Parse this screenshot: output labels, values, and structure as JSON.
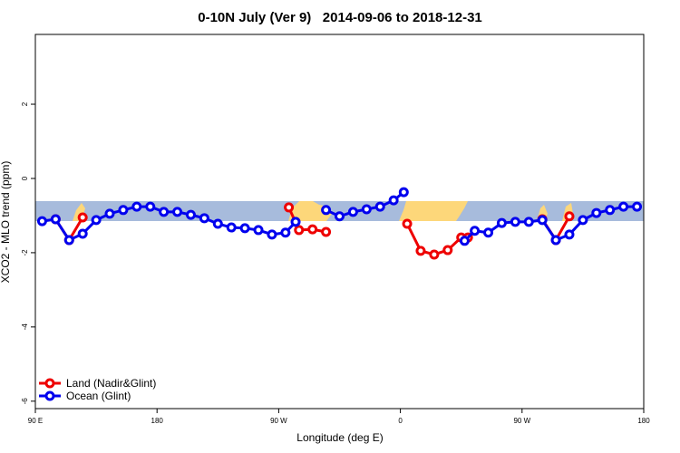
{
  "chart_data": {
    "type": "line",
    "title": "0-10N July (Ver 9)   2014-09-06 to 2018-12-31",
    "x_label": "Longitude (deg E)",
    "y_label": "XCO2 - MLO trend (ppm)",
    "xlim": [
      90,
      540
    ],
    "xticks": [
      {
        "value": 90,
        "label": "90 E"
      },
      {
        "value": 180,
        "label": "180"
      },
      {
        "value": 270,
        "label": "90 W"
      },
      {
        "value": 360,
        "label": "0"
      },
      {
        "value": 450,
        "label": "90 W"
      },
      {
        "value": 540,
        "label": "180"
      }
    ],
    "ylim": [
      -6.2,
      3.88
    ],
    "yticks": [
      -6,
      -4,
      -2,
      0,
      2
    ],
    "legend": "bottom-left",
    "series": [
      {
        "name": "Land (Nadir&Glint)",
        "color": "#ee0000",
        "x": [
          105,
          115,
          125,
          200,
          277.5,
          285,
          295,
          305,
          335,
          365,
          375,
          385,
          395,
          405,
          410,
          440,
          465,
          475,
          485
        ],
        "values": [
          -1.1,
          -1.66,
          -1.05,
          null,
          -0.78,
          -1.39,
          -1.37,
          -1.44,
          null,
          -1.22,
          -1.95,
          -2.05,
          -1.93,
          -1.59,
          -1.59,
          null,
          -1.1,
          -1.66,
          -1.02
        ]
      },
      {
        "name": "Ocean (Glint)",
        "color": "#0000ee",
        "x": [
          95,
          105,
          115,
          125,
          135,
          145,
          155,
          165,
          175,
          185,
          195,
          205,
          215,
          225,
          235,
          245,
          255,
          265,
          275,
          282.5,
          295,
          305,
          315,
          325,
          335,
          345,
          355,
          362.5,
          385,
          407.5,
          415,
          425,
          435,
          445,
          455,
          465,
          475,
          485,
          495,
          505,
          515,
          525,
          535
        ],
        "values": [
          -1.15,
          -1.1,
          -1.66,
          -1.49,
          -1.12,
          -0.95,
          -0.85,
          -0.76,
          -0.76,
          -0.9,
          -0.9,
          -0.98,
          -1.07,
          -1.22,
          -1.32,
          -1.34,
          -1.39,
          -1.51,
          -1.46,
          -1.17,
          null,
          -0.85,
          -1.02,
          -0.9,
          -0.83,
          -0.76,
          -0.59,
          -0.37,
          null,
          -1.68,
          -1.41,
          -1.46,
          -1.2,
          -1.17,
          -1.17,
          -1.12,
          -1.66,
          -1.51,
          -1.12,
          -0.93,
          -0.85,
          -0.76,
          -0.76
        ]
      }
    ]
  }
}
